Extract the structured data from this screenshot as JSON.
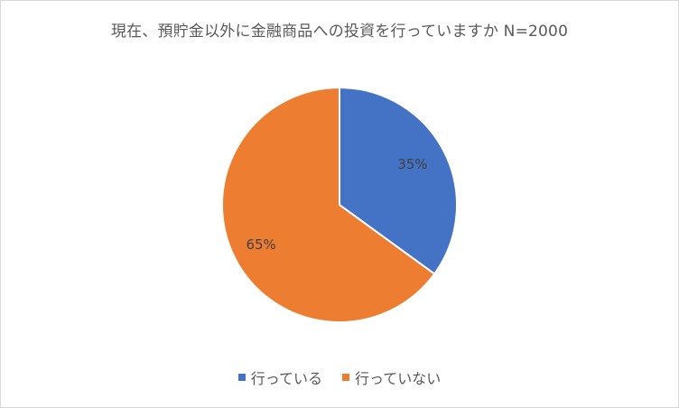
{
  "chart_data": {
    "type": "pie",
    "title": "現在、預貯金以外に金融商品への投資を行っていますか N=2000",
    "categories": [
      "行っている",
      "行っていない"
    ],
    "values": [
      35,
      65
    ],
    "data_labels": [
      "35%",
      "65%"
    ],
    "colors": [
      "#4472c4",
      "#ed7d31"
    ],
    "legend_position": "bottom"
  }
}
